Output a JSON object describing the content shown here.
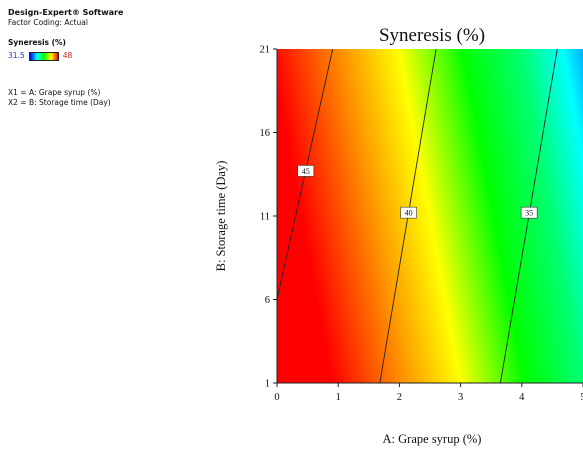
{
  "sidebar": {
    "software": "Design-Expert® Software",
    "coding": "Factor Coding: Actual",
    "response": "Syneresis (%)",
    "legend_min": "31.5",
    "legend_max": "48",
    "factor_x1": "X1 = A: Grape syrup (%)",
    "factor_x2": "X2 = B: Storage time (Day)"
  },
  "colors": {
    "min": "#0000ff",
    "max": "#ff0000"
  },
  "chart_data": {
    "type": "contour",
    "title": "Syneresis (%)",
    "xlabel": "A: Grape syrup (%)",
    "ylabel": "B: Storage time (Day)",
    "xlim": [
      0,
      5
    ],
    "ylim": [
      1,
      21
    ],
    "x_ticks": [
      "0",
      "1",
      "2",
      "3",
      "4",
      "5"
    ],
    "y_ticks": [
      "1",
      "6",
      "11",
      "16",
      "21"
    ],
    "color_range": [
      31.5,
      48
    ],
    "contours": [
      {
        "level": "45",
        "points": [
          [
            0.0,
            6.0
          ],
          [
            0.91,
            21.0
          ]
        ],
        "label_at": [
          0.47,
          13.7
        ]
      },
      {
        "level": "40",
        "points": [
          [
            1.68,
            1.0
          ],
          [
            2.6,
            21.0
          ]
        ],
        "label_at": [
          2.15,
          11.2
        ]
      },
      {
        "level": "35",
        "points": [
          [
            3.65,
            1.0
          ],
          [
            4.58,
            21.0
          ]
        ],
        "label_at": [
          4.12,
          11.2
        ]
      }
    ]
  }
}
